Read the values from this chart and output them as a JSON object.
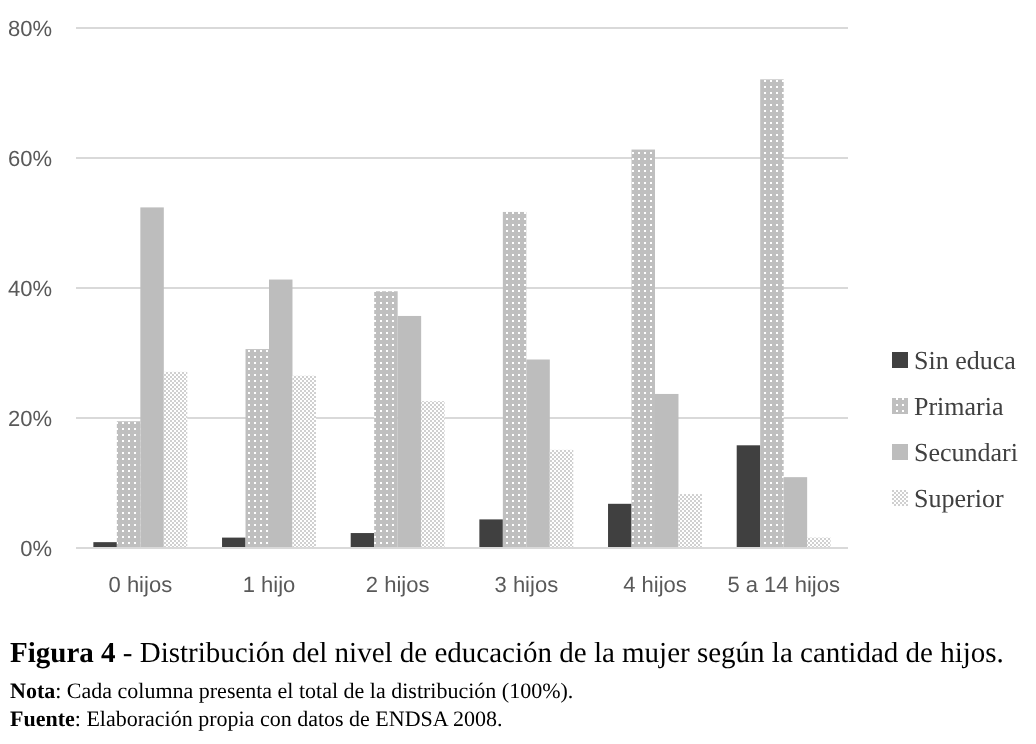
{
  "chart_data": {
    "type": "bar",
    "title": "Figura 4 - Distribución del nivel de educación de la mujer según la cantidad de hijos.",
    "categories": [
      "0 hijos",
      "1 hijo",
      "2 hijos",
      "3 hijos",
      "4 hijos",
      "5 a 14 hijos"
    ],
    "series": [
      {
        "name": "Sin educa",
        "color": "#404040",
        "values": [
          0.9,
          1.6,
          2.3,
          4.4,
          6.8,
          15.8
        ]
      },
      {
        "name": "Primaria",
        "color": "#bfbfbf",
        "values": [
          19.5,
          30.6,
          39.5,
          51.7,
          61.3,
          72.1
        ]
      },
      {
        "name": "Secundari",
        "color": "#bdbdbd",
        "values": [
          52.4,
          41.3,
          35.7,
          29.0,
          23.7,
          10.9
        ]
      },
      {
        "name": "Superior",
        "color": "#d0d0d0",
        "values": [
          27.1,
          26.5,
          22.6,
          15.1,
          8.3,
          1.6
        ]
      }
    ],
    "ylim": [
      0,
      80
    ],
    "yticks": [
      {
        "value": 0,
        "label": "0%"
      },
      {
        "value": 20,
        "label": "20%"
      },
      {
        "value": 40,
        "label": "40%"
      },
      {
        "value": 60,
        "label": "60%"
      },
      {
        "value": 80,
        "label": "80%"
      }
    ],
    "grid": "y",
    "legend": "right",
    "annotations": [
      "Nota: Cada columna presenta el total de la distribución (100%).",
      "Fuente: Elaboración propia con datos de ENDSA 2008."
    ]
  }
}
